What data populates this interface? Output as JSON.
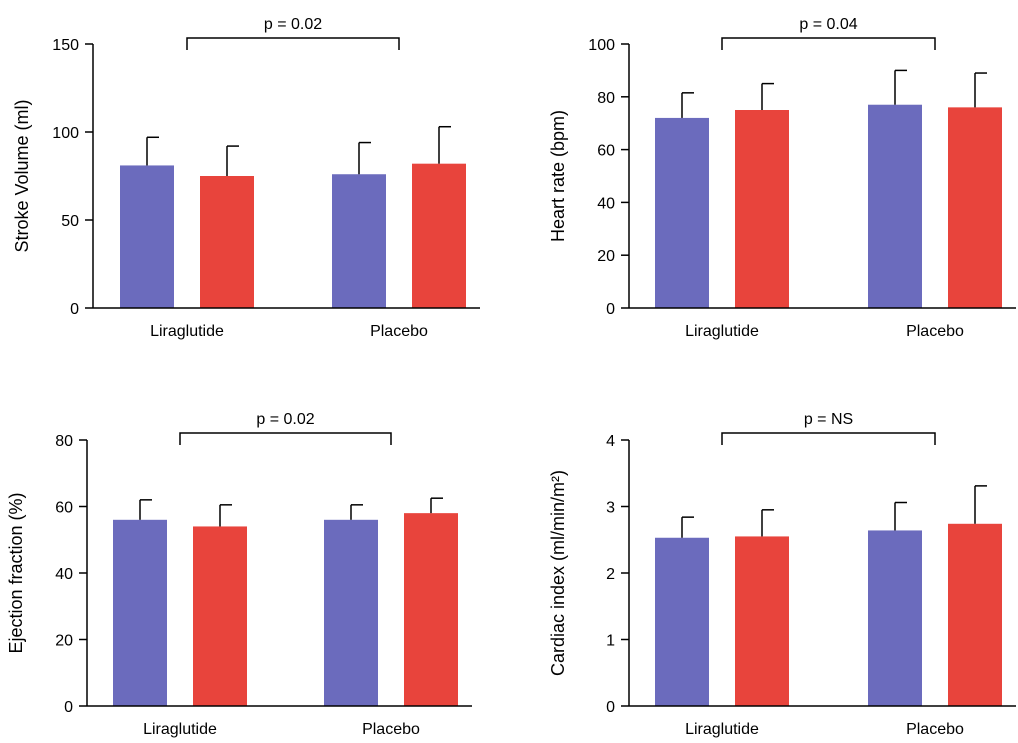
{
  "colors": {
    "series_a": "#6b6bbd",
    "series_b": "#e8443c"
  },
  "chart_data": [
    {
      "type": "bar",
      "categories": [
        "Liraglutide",
        "Placebo"
      ],
      "ylabel": "Stroke Volume (ml)",
      "ylim": [
        0,
        150
      ],
      "yticks": [
        "0",
        "50",
        "100",
        "150"
      ],
      "annotation": "p = 0.02",
      "series": [
        {
          "values": [
            81,
            76
          ],
          "errors": [
            16,
            18
          ]
        },
        {
          "values": [
            75,
            82
          ],
          "errors": [
            17,
            21
          ]
        }
      ]
    },
    {
      "type": "bar",
      "categories": [
        "Liraglutide",
        "Placebo"
      ],
      "ylabel": "Heart rate (bpm)",
      "ylim": [
        0,
        100
      ],
      "yticks": [
        "0",
        "20",
        "40",
        "60",
        "80",
        "100"
      ],
      "annotation": "p = 0.04",
      "series": [
        {
          "values": [
            72,
            77
          ],
          "errors": [
            9.5,
            13
          ]
        },
        {
          "values": [
            75,
            76
          ],
          "errors": [
            10,
            13
          ]
        }
      ]
    },
    {
      "type": "bar",
      "categories": [
        "Liraglutide",
        "Placebo"
      ],
      "ylabel": "Ejection fraction (%)",
      "ylim": [
        0,
        80
      ],
      "yticks": [
        "0",
        "20",
        "40",
        "60",
        "80"
      ],
      "annotation": "p = 0.02",
      "series": [
        {
          "values": [
            56,
            56
          ],
          "errors": [
            6,
            4.5
          ]
        },
        {
          "values": [
            54,
            58
          ],
          "errors": [
            6.5,
            4.5
          ]
        }
      ]
    },
    {
      "type": "bar",
      "categories": [
        "Liraglutide",
        "Placebo"
      ],
      "ylabel": "Cardiac index (ml/min/m²)",
      "ylim": [
        0,
        4
      ],
      "yticks": [
        "0",
        "1",
        "2",
        "3",
        "4"
      ],
      "annotation": "p = NS",
      "series": [
        {
          "values": [
            2.53,
            2.64
          ],
          "errors": [
            0.31,
            0.42
          ]
        },
        {
          "values": [
            2.55,
            2.74
          ],
          "errors": [
            0.4,
            0.57
          ]
        }
      ]
    }
  ]
}
